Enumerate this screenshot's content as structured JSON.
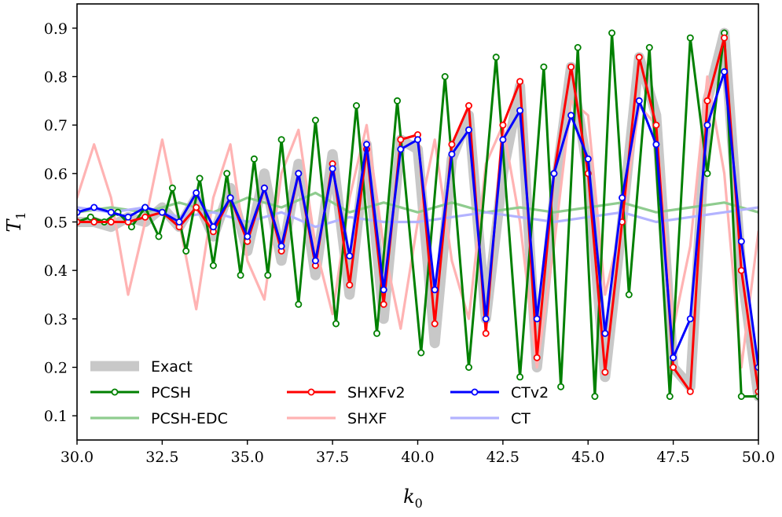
{
  "chart_data": {
    "type": "line",
    "xlabel": {
      "main": "k",
      "sub": "0"
    },
    "ylabel": {
      "main": "T",
      "sub": "1"
    },
    "xlim": [
      30.0,
      50.0
    ],
    "ylim": [
      0.05,
      0.95
    ],
    "x_ticks": [
      30.0,
      32.5,
      35.0,
      37.5,
      40.0,
      42.5,
      45.0,
      47.5,
      50.0
    ],
    "x_tick_labels": [
      "30.0",
      "32.5",
      "35.0",
      "37.5",
      "40.0",
      "42.5",
      "45.0",
      "47.5",
      "50.0"
    ],
    "y_ticks": [
      0.1,
      0.2,
      0.3,
      0.4,
      0.5,
      0.6,
      0.7,
      0.8,
      0.9
    ],
    "y_tick_labels": [
      "0.1",
      "0.2",
      "0.3",
      "0.4",
      "0.5",
      "0.6",
      "0.7",
      "0.8",
      "0.9"
    ],
    "grid": false,
    "legend_position": "lower-left",
    "series": [
      {
        "name": "Exact",
        "color": "#c8c8c8",
        "style": "thick",
        "x": [
          30.0,
          30.5,
          31.0,
          31.5,
          32.0,
          32.5,
          33.0,
          33.5,
          34.0,
          34.5,
          35.0,
          35.5,
          36.0,
          36.5,
          37.0,
          37.5,
          38.0,
          38.5,
          39.0,
          39.5,
          40.0,
          40.5,
          41.0,
          41.5,
          42.0,
          42.5,
          43.0,
          43.5,
          44.0,
          44.5,
          45.0,
          45.5,
          46.0,
          46.5,
          47.0,
          47.5,
          48.0,
          48.5,
          49.0,
          49.5,
          50.0
        ],
        "y": [
          0.5,
          0.5,
          0.49,
          0.51,
          0.5,
          0.53,
          0.49,
          0.55,
          0.47,
          0.57,
          0.44,
          0.6,
          0.42,
          0.62,
          0.39,
          0.64,
          0.35,
          0.66,
          0.3,
          0.67,
          0.65,
          0.25,
          0.63,
          0.72,
          0.3,
          0.6,
          0.78,
          0.2,
          0.55,
          0.82,
          0.6,
          0.18,
          0.5,
          0.84,
          0.72,
          0.2,
          0.16,
          0.75,
          0.89,
          0.4,
          0.14
        ]
      },
      {
        "name": "PCSH",
        "color": "#008000",
        "style": "line-marker",
        "x": [
          30.0,
          30.4,
          30.8,
          31.2,
          31.6,
          32.0,
          32.4,
          32.8,
          33.2,
          33.6,
          34.0,
          34.4,
          34.8,
          35.2,
          35.6,
          36.0,
          36.5,
          37.0,
          37.6,
          38.2,
          38.8,
          39.4,
          40.1,
          40.8,
          41.5,
          42.3,
          43.0,
          43.7,
          44.2,
          44.7,
          45.2,
          45.7,
          46.2,
          46.8,
          47.4,
          48.0,
          48.5,
          49.0,
          49.5,
          50.0
        ],
        "y": [
          0.5,
          0.51,
          0.5,
          0.52,
          0.49,
          0.53,
          0.47,
          0.57,
          0.44,
          0.59,
          0.41,
          0.6,
          0.39,
          0.63,
          0.39,
          0.67,
          0.33,
          0.71,
          0.29,
          0.74,
          0.27,
          0.75,
          0.23,
          0.8,
          0.2,
          0.84,
          0.18,
          0.82,
          0.16,
          0.86,
          0.14,
          0.89,
          0.35,
          0.86,
          0.14,
          0.88,
          0.6,
          0.89,
          0.14,
          0.14
        ]
      },
      {
        "name": "PCSH-EDC",
        "color": "#8fcc8f",
        "style": "faint",
        "x": [
          30.0,
          31.0,
          32.0,
          33.0,
          34.0,
          35.0,
          36.0,
          37.0,
          38.0,
          39.0,
          40.0,
          41.0,
          42.0,
          43.0,
          44.0,
          45.0,
          46.0,
          47.0,
          48.0,
          49.0,
          50.0
        ],
        "y": [
          0.52,
          0.53,
          0.52,
          0.54,
          0.52,
          0.55,
          0.53,
          0.56,
          0.52,
          0.54,
          0.52,
          0.54,
          0.52,
          0.53,
          0.52,
          0.53,
          0.54,
          0.52,
          0.53,
          0.54,
          0.52
        ]
      },
      {
        "name": "SHXFv2",
        "color": "#ff0000",
        "style": "line-marker",
        "x": [
          30.0,
          30.5,
          31.0,
          31.5,
          32.0,
          32.5,
          33.0,
          33.5,
          34.0,
          34.5,
          35.0,
          35.5,
          36.0,
          36.5,
          37.0,
          37.5,
          38.0,
          38.5,
          39.0,
          39.5,
          40.0,
          40.5,
          41.0,
          41.5,
          42.0,
          42.5,
          43.0,
          43.5,
          44.0,
          44.5,
          45.0,
          45.5,
          46.0,
          46.5,
          47.0,
          47.5,
          48.0,
          48.5,
          49.0,
          49.5,
          50.0
        ],
        "y": [
          0.5,
          0.5,
          0.5,
          0.5,
          0.51,
          0.52,
          0.49,
          0.53,
          0.48,
          0.55,
          0.46,
          0.57,
          0.44,
          0.6,
          0.41,
          0.62,
          0.37,
          0.65,
          0.33,
          0.67,
          0.68,
          0.29,
          0.66,
          0.74,
          0.27,
          0.7,
          0.79,
          0.22,
          0.6,
          0.82,
          0.6,
          0.19,
          0.5,
          0.84,
          0.7,
          0.2,
          0.15,
          0.75,
          0.88,
          0.4,
          0.15
        ]
      },
      {
        "name": "SHXF",
        "color": "#ffb3b3",
        "style": "faint",
        "x": [
          30.0,
          30.5,
          31.0,
          31.5,
          32.0,
          32.5,
          33.0,
          33.5,
          34.0,
          34.5,
          35.0,
          35.5,
          36.0,
          36.5,
          37.0,
          37.5,
          38.0,
          38.5,
          39.0,
          39.5,
          40.0,
          40.5,
          41.0,
          41.5,
          42.0,
          42.5,
          43.0,
          43.5,
          44.0,
          44.5,
          45.0,
          45.5,
          46.0,
          46.5,
          47.0,
          47.5,
          48.0,
          48.5,
          49.0,
          49.5,
          50.0
        ],
        "y": [
          0.55,
          0.66,
          0.55,
          0.35,
          0.5,
          0.67,
          0.5,
          0.32,
          0.55,
          0.66,
          0.42,
          0.34,
          0.6,
          0.69,
          0.45,
          0.31,
          0.55,
          0.7,
          0.45,
          0.28,
          0.5,
          0.67,
          0.42,
          0.3,
          0.62,
          0.7,
          0.5,
          0.2,
          0.45,
          0.75,
          0.72,
          0.35,
          0.5,
          0.74,
          0.7,
          0.28,
          0.45,
          0.8,
          0.6,
          0.2,
          0.48
        ]
      },
      {
        "name": "CTv2",
        "color": "#0000ff",
        "style": "line-marker",
        "x": [
          30.0,
          30.5,
          31.0,
          31.5,
          32.0,
          32.5,
          33.0,
          33.5,
          34.0,
          34.5,
          35.0,
          35.5,
          36.0,
          36.5,
          37.0,
          37.5,
          38.0,
          38.5,
          39.0,
          39.5,
          40.0,
          40.5,
          41.0,
          41.5,
          42.0,
          42.5,
          43.0,
          43.5,
          44.0,
          44.5,
          45.0,
          45.5,
          46.0,
          46.5,
          47.0,
          47.5,
          48.0,
          48.5,
          49.0,
          49.5,
          50.0
        ],
        "y": [
          0.52,
          0.53,
          0.52,
          0.51,
          0.53,
          0.52,
          0.5,
          0.56,
          0.49,
          0.55,
          0.47,
          0.57,
          0.45,
          0.6,
          0.42,
          0.61,
          0.43,
          0.66,
          0.36,
          0.65,
          0.67,
          0.36,
          0.64,
          0.69,
          0.3,
          0.67,
          0.73,
          0.3,
          0.6,
          0.72,
          0.63,
          0.27,
          0.55,
          0.75,
          0.66,
          0.22,
          0.3,
          0.7,
          0.81,
          0.46,
          0.2
        ]
      },
      {
        "name": "CT",
        "color": "#b3b3ff",
        "style": "faint",
        "x": [
          30.0,
          31.0,
          32.0,
          33.0,
          34.0,
          35.0,
          36.0,
          37.0,
          38.0,
          39.0,
          40.0,
          41.0,
          42.0,
          43.0,
          44.0,
          45.0,
          46.0,
          47.0,
          48.0,
          49.0,
          50.0
        ],
        "y": [
          0.53,
          0.52,
          0.53,
          0.51,
          0.52,
          0.5,
          0.52,
          0.49,
          0.51,
          0.5,
          0.5,
          0.51,
          0.52,
          0.51,
          0.5,
          0.51,
          0.52,
          0.5,
          0.51,
          0.52,
          0.53
        ]
      }
    ],
    "legend": [
      {
        "label": "Exact",
        "series": "Exact"
      },
      {
        "label": "PCSH",
        "series": "PCSH"
      },
      {
        "label": "PCSH-EDC",
        "series": "PCSH-EDC"
      },
      {
        "label": "SHXFv2",
        "series": "SHXFv2"
      },
      {
        "label": "SHXF",
        "series": "SHXF"
      },
      {
        "label": "CTv2",
        "series": "CTv2"
      },
      {
        "label": "CT",
        "series": "CT"
      }
    ]
  }
}
